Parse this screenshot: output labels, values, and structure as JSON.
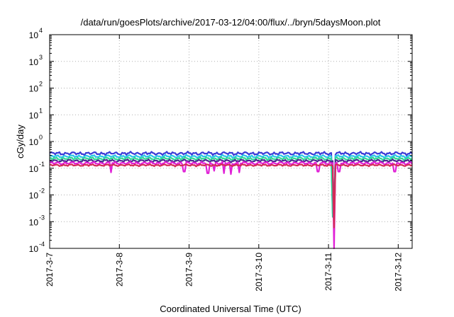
{
  "chart_data": {
    "type": "line",
    "title": "/data/run/goesPlots/archive/2017-03-12/04:00/flux/../bryn/5daysMoon.plot",
    "xlabel": "Coordinated Universal Time (UTC)",
    "ylabel": "cGy/day",
    "yscale": "log",
    "ylim": [
      0.0001,
      10000
    ],
    "xlim_days": [
      0,
      5.2
    ],
    "grid": true,
    "legend": "none",
    "x_ticks": [
      {
        "label": "2017-3-7",
        "day": 0
      },
      {
        "label": "2017-3-8",
        "day": 1
      },
      {
        "label": "2017-3-9",
        "day": 2
      },
      {
        "label": "2017-3-10",
        "day": 3
      },
      {
        "label": "2017-3-11",
        "day": 4
      },
      {
        "label": "2017-3-12",
        "day": 5
      }
    ],
    "y_ticks": [
      {
        "base": "10",
        "exp": "-4",
        "value": 0.0001
      },
      {
        "base": "10",
        "exp": "-3",
        "value": 0.001
      },
      {
        "base": "10",
        "exp": "-2",
        "value": 0.01
      },
      {
        "base": "10",
        "exp": "-1",
        "value": 0.1
      },
      {
        "base": "10",
        "exp": "0",
        "value": 1
      },
      {
        "base": "10",
        "exp": "1",
        "value": 10
      },
      {
        "base": "10",
        "exp": "2",
        "value": 100
      },
      {
        "base": "10",
        "exp": "3",
        "value": 1000
      },
      {
        "base": "10",
        "exp": "4",
        "value": 10000
      }
    ],
    "series": [
      {
        "color": "#3b3bd6",
        "base": 0.36,
        "amp": 0.09,
        "phase": 0.0,
        "dips": [
          {
            "day": 4.07,
            "value": 0.003
          }
        ]
      },
      {
        "color": "#29c6e8",
        "base": 0.28,
        "amp": 0.06,
        "phase": 1.1,
        "dips": [
          {
            "day": 4.07,
            "value": 0.002
          }
        ]
      },
      {
        "color": "#2fd696",
        "base": 0.23,
        "amp": 0.05,
        "phase": 2.3,
        "dips": [
          {
            "day": 4.07,
            "value": 0.0015
          }
        ]
      },
      {
        "color": "#4a2a90",
        "base": 0.19,
        "amp": 0.04,
        "phase": 3.1,
        "dips": [
          {
            "day": 4.08,
            "value": 0.0004
          }
        ]
      },
      {
        "color": "#e020d6",
        "base": 0.155,
        "amp": 0.035,
        "phase": 0.7,
        "dips": [
          {
            "day": 0.88,
            "value": 0.07
          },
          {
            "day": 1.93,
            "value": 0.075
          },
          {
            "day": 2.27,
            "value": 0.065
          },
          {
            "day": 2.36,
            "value": 0.08
          },
          {
            "day": 2.5,
            "value": 0.065
          },
          {
            "day": 2.6,
            "value": 0.06
          },
          {
            "day": 2.72,
            "value": 0.07
          },
          {
            "day": 3.85,
            "value": 0.075
          },
          {
            "day": 4.08,
            "value": 0.0001
          },
          {
            "day": 4.15,
            "value": 0.075
          },
          {
            "day": 4.95,
            "value": 0.075
          }
        ]
      },
      {
        "color": "#d42b55",
        "base": 0.13,
        "amp": 0.02,
        "phase": 1.9,
        "dips": [
          {
            "day": 4.08,
            "value": 0.0006
          }
        ]
      }
    ]
  }
}
